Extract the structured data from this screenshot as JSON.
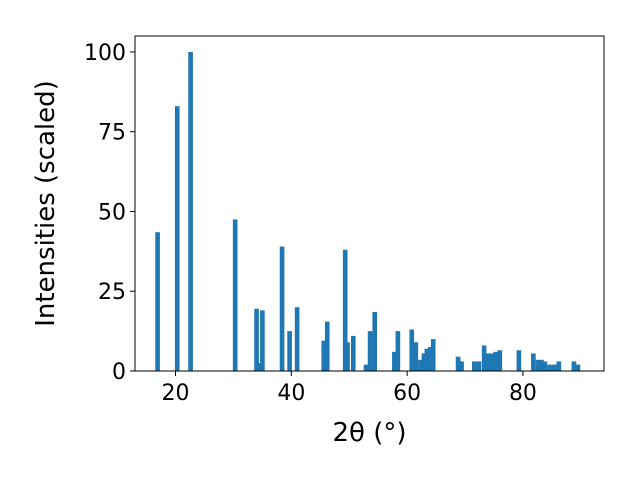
{
  "chart_data": {
    "type": "bar",
    "title": "",
    "xlabel": "2θ (°)",
    "ylabel": "Intensities (scaled)",
    "xlim": [
      13,
      94
    ],
    "ylim": [
      0,
      105
    ],
    "x_ticks": [
      20,
      40,
      60,
      80
    ],
    "y_ticks": [
      0,
      25,
      50,
      75,
      100
    ],
    "x_tick_labels": [
      "20",
      "40",
      "60",
      "80"
    ],
    "y_tick_labels": [
      "0",
      "25",
      "50",
      "75",
      "100"
    ],
    "grid": false,
    "legend": "none",
    "bar_width": 0.8,
    "color": "#1f77b4",
    "series": [
      {
        "x": [
          16.9,
          20.3,
          22.6,
          30.3,
          34.0,
          34.4,
          35.0,
          38.4,
          39.7,
          41.0,
          45.6,
          46.2,
          49.3,
          49.7,
          50.7,
          52.9,
          53.6,
          54.4,
          57.8,
          58.4,
          60.8,
          61.5,
          62.3,
          62.9,
          63.4,
          64.0,
          64.5,
          68.8,
          69.4,
          71.6,
          72.4,
          73.3,
          73.9,
          74.6,
          75.3,
          76.0,
          79.3,
          81.8,
          82.6,
          83.2,
          83.8,
          84.6,
          85.4,
          86.2,
          88.8,
          89.5
        ],
        "values": [
          43.5,
          83,
          100,
          47.5,
          19.5,
          2.5,
          19,
          39,
          12.5,
          20,
          9.5,
          15.5,
          38,
          9,
          11,
          2,
          12.5,
          18.5,
          6,
          12.5,
          13,
          9,
          3.5,
          5.5,
          7,
          7.5,
          10,
          4.5,
          3,
          3,
          3,
          8,
          5.5,
          5.5,
          6,
          6.5,
          6.5,
          5.5,
          3.5,
          3.5,
          3,
          2,
          2,
          3,
          3,
          2
        ]
      }
    ]
  }
}
